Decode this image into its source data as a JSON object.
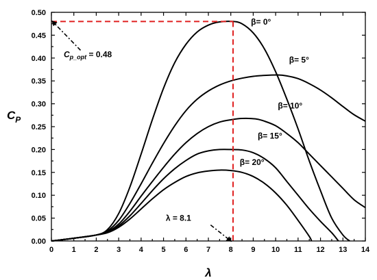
{
  "chart_data": {
    "type": "line",
    "xlabel": "λ",
    "ylabel": {
      "main": "C",
      "sub": "P"
    },
    "xlim": [
      0,
      14
    ],
    "ylim": [
      0,
      0.5
    ],
    "x_ticks": [
      "0",
      "1",
      "2",
      "3",
      "4",
      "5",
      "6",
      "7",
      "8",
      "9",
      "10",
      "11",
      "12",
      "13",
      "14"
    ],
    "y_ticks": [
      "0.00",
      "0.05",
      "0.10",
      "0.15",
      "0.20",
      "0.25",
      "0.30",
      "0.35",
      "0.40",
      "0.45",
      "0.50"
    ],
    "grid": false,
    "series": [
      {
        "name": "β= 0°",
        "label_at": [
          8.9,
          0.473
        ],
        "points": [
          [
            0,
            0
          ],
          [
            1,
            0.006
          ],
          [
            2,
            0.013
          ],
          [
            2.5,
            0.025
          ],
          [
            3,
            0.06
          ],
          [
            3.5,
            0.118
          ],
          [
            4,
            0.19
          ],
          [
            4.5,
            0.265
          ],
          [
            5,
            0.334
          ],
          [
            5.5,
            0.39
          ],
          [
            6,
            0.43
          ],
          [
            6.5,
            0.457
          ],
          [
            7,
            0.472
          ],
          [
            7.5,
            0.479
          ],
          [
            8.1,
            0.48
          ],
          [
            8.5,
            0.475
          ],
          [
            9,
            0.455
          ],
          [
            9.5,
            0.42
          ],
          [
            10,
            0.37
          ],
          [
            10.5,
            0.31
          ],
          [
            11,
            0.245
          ],
          [
            11.5,
            0.175
          ],
          [
            12,
            0.11
          ],
          [
            12.5,
            0.05
          ],
          [
            13,
            0.013
          ],
          [
            13.3,
            0.0
          ]
        ]
      },
      {
        "name": "β= 5°",
        "label_at": [
          10.6,
          0.39
        ],
        "points": [
          [
            0,
            0
          ],
          [
            1,
            0.006
          ],
          [
            2,
            0.013
          ],
          [
            2.5,
            0.022
          ],
          [
            3,
            0.045
          ],
          [
            3.5,
            0.082
          ],
          [
            4,
            0.125
          ],
          [
            4.5,
            0.17
          ],
          [
            5,
            0.213
          ],
          [
            5.5,
            0.252
          ],
          [
            6,
            0.285
          ],
          [
            6.5,
            0.31
          ],
          [
            7,
            0.328
          ],
          [
            7.5,
            0.341
          ],
          [
            8,
            0.35
          ],
          [
            8.5,
            0.356
          ],
          [
            9,
            0.36
          ],
          [
            9.5,
            0.362
          ],
          [
            10.1,
            0.363
          ],
          [
            10.5,
            0.361
          ],
          [
            11,
            0.355
          ],
          [
            11.5,
            0.344
          ],
          [
            12,
            0.33
          ],
          [
            12.5,
            0.313
          ],
          [
            13,
            0.294
          ],
          [
            13.5,
            0.276
          ],
          [
            14,
            0.262
          ]
        ]
      },
      {
        "name": "β= 10°",
        "label_at": [
          10.1,
          0.29
        ],
        "points": [
          [
            0,
            0
          ],
          [
            1,
            0.006
          ],
          [
            2,
            0.013
          ],
          [
            2.5,
            0.02
          ],
          [
            3,
            0.037
          ],
          [
            3.5,
            0.065
          ],
          [
            4,
            0.098
          ],
          [
            4.5,
            0.13
          ],
          [
            5,
            0.161
          ],
          [
            5.5,
            0.19
          ],
          [
            6,
            0.215
          ],
          [
            6.5,
            0.235
          ],
          [
            7,
            0.25
          ],
          [
            7.5,
            0.26
          ],
          [
            8,
            0.265
          ],
          [
            8.5,
            0.268
          ],
          [
            9.1,
            0.267
          ],
          [
            9.5,
            0.262
          ],
          [
            10,
            0.252
          ],
          [
            10.5,
            0.235
          ],
          [
            11,
            0.215
          ],
          [
            11.5,
            0.19
          ],
          [
            12,
            0.165
          ],
          [
            12.5,
            0.14
          ],
          [
            13,
            0.115
          ],
          [
            13.5,
            0.09
          ],
          [
            14,
            0.073
          ]
        ]
      },
      {
        "name": "β= 15°",
        "label_at": [
          9.2,
          0.224
        ],
        "points": [
          [
            0,
            0
          ],
          [
            1,
            0.006
          ],
          [
            2,
            0.013
          ],
          [
            2.5,
            0.019
          ],
          [
            3,
            0.033
          ],
          [
            3.5,
            0.055
          ],
          [
            4,
            0.082
          ],
          [
            4.5,
            0.11
          ],
          [
            5,
            0.136
          ],
          [
            5.5,
            0.158
          ],
          [
            6,
            0.176
          ],
          [
            6.5,
            0.19
          ],
          [
            7,
            0.197
          ],
          [
            7.5,
            0.2
          ],
          [
            8,
            0.2
          ],
          [
            8.5,
            0.199
          ],
          [
            9,
            0.193
          ],
          [
            9.5,
            0.18
          ],
          [
            10,
            0.16
          ],
          [
            10.5,
            0.13
          ],
          [
            11,
            0.1
          ],
          [
            11.5,
            0.07
          ],
          [
            12,
            0.043
          ],
          [
            12.5,
            0.018
          ],
          [
            12.8,
            0.0
          ]
        ]
      },
      {
        "name": "β= 20°",
        "label_at": [
          8.4,
          0.166
        ],
        "points": [
          [
            0,
            0
          ],
          [
            1,
            0.006
          ],
          [
            2,
            0.013
          ],
          [
            2.5,
            0.018
          ],
          [
            3,
            0.03
          ],
          [
            3.5,
            0.048
          ],
          [
            4,
            0.07
          ],
          [
            4.5,
            0.092
          ],
          [
            5,
            0.112
          ],
          [
            5.5,
            0.128
          ],
          [
            6,
            0.141
          ],
          [
            6.5,
            0.149
          ],
          [
            7,
            0.153
          ],
          [
            7.5,
            0.155
          ],
          [
            8,
            0.154
          ],
          [
            8.5,
            0.15
          ],
          [
            9,
            0.141
          ],
          [
            9.5,
            0.126
          ],
          [
            10,
            0.105
          ],
          [
            10.5,
            0.078
          ],
          [
            11,
            0.045
          ],
          [
            11.5,
            0.01
          ],
          [
            11.6,
            0.0
          ]
        ]
      }
    ],
    "guides": {
      "x": 8.1,
      "y": 0.48
    },
    "annotations": [
      {
        "name": "cp-opt",
        "text_main": "C",
        "text_sub": "p_opt",
        "text_value": " = 0.48",
        "text_at": [
          0.55,
          0.402
        ],
        "arrow_from": [
          1.3,
          0.417
        ],
        "arrow_to": [
          0.05,
          0.48
        ]
      },
      {
        "name": "lambda-opt",
        "text": "λ = 8.1",
        "text_at": [
          5.1,
          0.044
        ],
        "arrow_from": [
          7.1,
          0.035
        ],
        "arrow_to": [
          8.0,
          0.0
        ]
      }
    ]
  },
  "colors": {
    "curve": "#000000",
    "guide": "#e02020"
  }
}
